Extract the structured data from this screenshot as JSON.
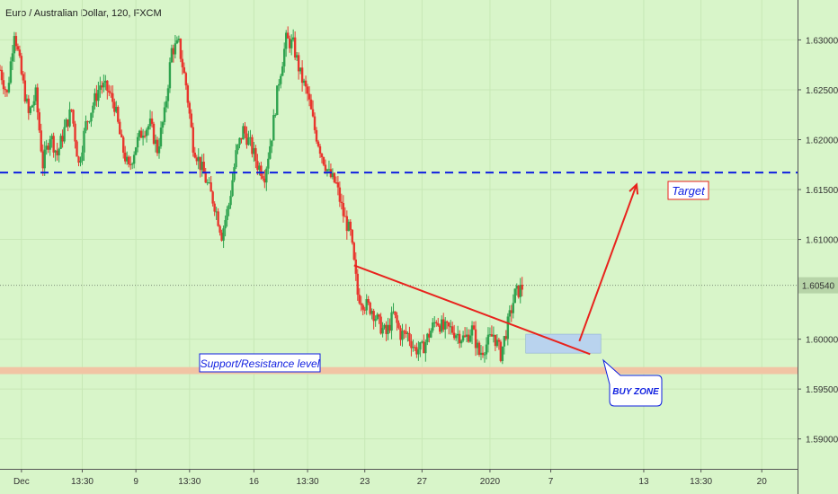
{
  "header": {
    "title": "Euro / Australian Dollar, 120, FXCM"
  },
  "chart_data": {
    "type": "candlestick",
    "symbol": "Euro / Australian Dollar",
    "interval": "120",
    "source": "FXCM",
    "ylim": [
      1.587,
      1.634
    ],
    "y_ticks": [
      "1.63000",
      "1.62500",
      "1.62000",
      "1.61500",
      "1.61000",
      "1.60540",
      "1.60000",
      "1.59500",
      "1.59000"
    ],
    "x_ticks": [
      {
        "label": "Dec",
        "t": 6
      },
      {
        "label": "13:30",
        "t": 23
      },
      {
        "label": "9",
        "t": 38
      },
      {
        "label": "13:30",
        "t": 53
      },
      {
        "label": "16",
        "t": 71
      },
      {
        "label": "13:30",
        "t": 86
      },
      {
        "label": "23",
        "t": 102
      },
      {
        "label": "27",
        "t": 118
      },
      {
        "label": "2020",
        "t": 137
      },
      {
        "label": "7",
        "t": 154
      },
      {
        "label": "13",
        "t": 180
      },
      {
        "label": "13:30",
        "t": 196
      },
      {
        "label": "20",
        "t": 213
      }
    ],
    "x_max": 223,
    "current_price": "1.60540",
    "current_price_value": 1.6054,
    "candles_source": "sampled",
    "close_path": [
      [
        0,
        1.627
      ],
      [
        2,
        1.6245
      ],
      [
        4,
        1.631
      ],
      [
        6,
        1.6265
      ],
      [
        8,
        1.6225
      ],
      [
        10,
        1.6245
      ],
      [
        12,
        1.6175
      ],
      [
        14,
        1.6205
      ],
      [
        16,
        1.6185
      ],
      [
        18,
        1.621
      ],
      [
        20,
        1.623
      ],
      [
        22,
        1.6175
      ],
      [
        24,
        1.6215
      ],
      [
        26,
        1.6235
      ],
      [
        28,
        1.6255
      ],
      [
        30,
        1.625
      ],
      [
        32,
        1.6235
      ],
      [
        34,
        1.6195
      ],
      [
        36,
        1.617
      ],
      [
        38,
        1.6195
      ],
      [
        40,
        1.621
      ],
      [
        42,
        1.6215
      ],
      [
        44,
        1.619
      ],
      [
        46,
        1.6225
      ],
      [
        48,
        1.629
      ],
      [
        50,
        1.6295
      ],
      [
        52,
        1.6255
      ],
      [
        54,
        1.6195
      ],
      [
        56,
        1.6175
      ],
      [
        58,
        1.6155
      ],
      [
        60,
        1.6135
      ],
      [
        62,
        1.6105
      ],
      [
        64,
        1.6135
      ],
      [
        66,
        1.6185
      ],
      [
        68,
        1.621
      ],
      [
        70,
        1.6195
      ],
      [
        72,
        1.6175
      ],
      [
        74,
        1.6165
      ],
      [
        76,
        1.6205
      ],
      [
        78,
        1.626
      ],
      [
        80,
        1.63
      ],
      [
        82,
        1.6295
      ],
      [
        84,
        1.6265
      ],
      [
        86,
        1.6245
      ],
      [
        88,
        1.621
      ],
      [
        90,
        1.6185
      ],
      [
        92,
        1.6165
      ],
      [
        94,
        1.6155
      ],
      [
        96,
        1.6125
      ],
      [
        98,
        1.6105
      ],
      [
        100,
        1.6045
      ],
      [
        102,
        1.6035
      ],
      [
        104,
        1.603
      ],
      [
        106,
        1.6015
      ],
      [
        108,
        1.6005
      ],
      [
        110,
        1.6025
      ],
      [
        112,
        1.6005
      ],
      [
        114,
        1.6005
      ],
      [
        116,
        1.599
      ],
      [
        118,
        1.599
      ],
      [
        120,
        1.6005
      ],
      [
        122,
        1.602
      ],
      [
        124,
        1.601
      ],
      [
        126,
        1.601
      ],
      [
        128,
        1.6005
      ],
      [
        130,
        1.6
      ],
      [
        132,
        1.601
      ],
      [
        134,
        1.5985
      ],
      [
        136,
        1.5995
      ],
      [
        138,
        1.6005
      ],
      [
        140,
        1.5985
      ],
      [
        142,
        1.6015
      ],
      [
        144,
        1.6045
      ],
      [
        146,
        1.6052
      ]
    ],
    "lines": [
      {
        "name": "resistance",
        "style": "dashed",
        "color": "#0f1fe0",
        "y": 1.6167
      },
      {
        "name": "support",
        "style": "band",
        "color": "#f1c4a4",
        "y_from": 1.5965,
        "y_to": 1.5972
      },
      {
        "name": "trendline",
        "style": "solid",
        "color": "#e8231d",
        "x_from": 99,
        "y_from": 1.6074,
        "x_to": 165,
        "y_to": 1.5985
      }
    ],
    "zones": [
      {
        "name": "buy_zone",
        "color": "#b9d3ee",
        "x_from": 147,
        "x_to": 168,
        "y_from": 1.5986,
        "y_to": 1.6005
      }
    ],
    "arrow": {
      "x_from": 162,
      "y_from": 1.5998,
      "x_to": 178,
      "y_to": 1.6155,
      "color": "#e8231d"
    },
    "annotations": {
      "target": "Target",
      "support_resistance": "Support/Resistance level",
      "buy_zone": "BUY ZONE"
    },
    "colors": {
      "up": "#2fa34f",
      "down": "#e8362d",
      "background": "#d8f5c9",
      "accent": "#0f1fe0"
    }
  }
}
